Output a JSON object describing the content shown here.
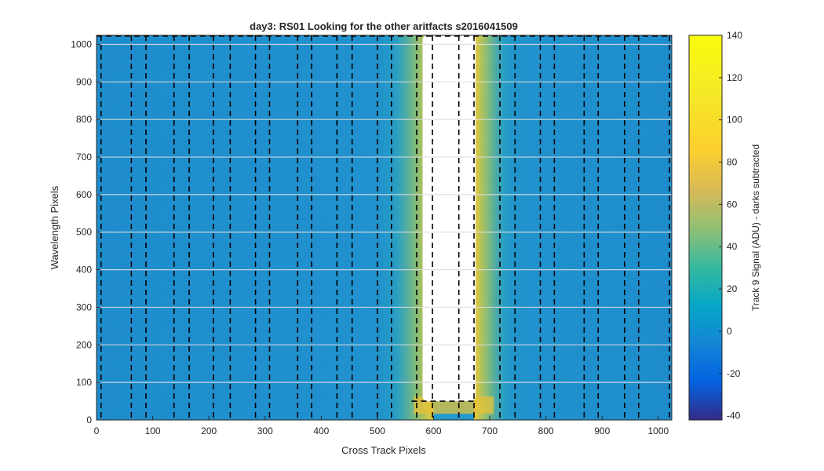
{
  "chart_data": {
    "type": "heatmap",
    "title": "day3: RS01  Looking for the other aritfacts  s2016041509",
    "xlabel": "Cross Track Pixels",
    "ylabel": "Wavelength Pixels",
    "xlim": [
      0,
      1024
    ],
    "ylim": [
      0,
      1024
    ],
    "x_ticks": [
      0,
      100,
      200,
      300,
      400,
      500,
      600,
      700,
      800,
      900,
      1000
    ],
    "y_ticks": [
      0,
      100,
      200,
      300,
      400,
      500,
      600,
      700,
      800,
      900,
      1000
    ],
    "colorbar": {
      "label": "Track 9 Signal (ADU) - darks subtracted",
      "range": [
        -42,
        140
      ],
      "ticks": [
        -40,
        -20,
        0,
        20,
        40,
        60,
        80,
        100,
        120,
        140
      ],
      "colormap": "parula"
    },
    "background_signal_adu": 10,
    "saturated_region": {
      "x_range": [
        600,
        672
      ],
      "y_range": [
        50,
        1024
      ],
      "note_color": "#ffffff"
    },
    "dashed_boundary_lines_x": [
      8,
      62,
      88,
      138,
      165,
      208,
      238,
      283,
      308,
      358,
      383,
      428,
      455,
      500,
      525,
      570,
      598,
      645,
      672,
      718,
      745,
      790,
      815,
      868,
      893,
      940,
      965,
      1020
    ],
    "colors": {
      "background_field": "#1b87c9",
      "glow": "#f2c531",
      "boundary_lines": "#000000"
    }
  }
}
